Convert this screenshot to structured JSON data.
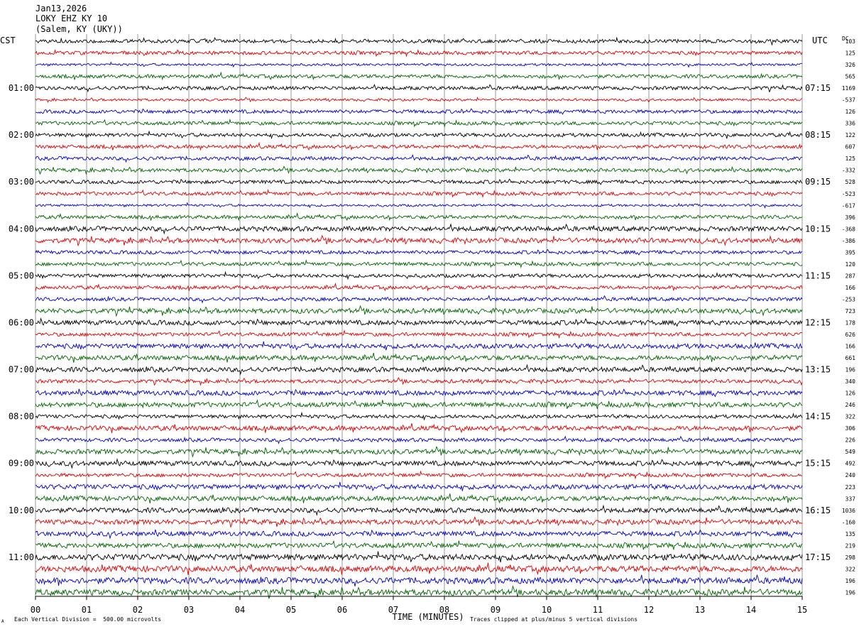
{
  "header": {
    "date": "Jan13,2026",
    "station": "LOKY EHZ KY 10",
    "location": "(Salem, KY (UKY))"
  },
  "left_axis_title": "CST",
  "right_axis_title": "UTC",
  "dc_title": "DC",
  "footer": {
    "scale_note": "Each Vertical Division =  500.00 microvolts",
    "clip_note": "Traces clipped at plus/minus 5 vertical divisions",
    "corner_mark": "A"
  },
  "chart_data": {
    "type": "line",
    "xlabel": "TIME (MINUTES)",
    "xlim": [
      0,
      15
    ],
    "x_ticks": [
      "00",
      "01",
      "02",
      "03",
      "04",
      "05",
      "06",
      "07",
      "08",
      "09",
      "10",
      "11",
      "12",
      "13",
      "14",
      "15"
    ],
    "trace_count": 48,
    "trace_colors": [
      "#000000",
      "#e00000",
      "#0000cc",
      "#006600"
    ],
    "left_time_labels": [
      "01:00",
      "02:00",
      "03:00",
      "04:00",
      "05:00",
      "06:00",
      "07:00",
      "08:00",
      "09:00",
      "10:00",
      "11:00"
    ],
    "right_time_labels": [
      "07:15",
      "08:15",
      "09:15",
      "10:15",
      "11:15",
      "12:15",
      "13:15",
      "14:15",
      "15:15",
      "16:15",
      "17:15"
    ],
    "dc_offsets": [
      "103",
      "125",
      "326",
      "565",
      "1169",
      "-537",
      "126",
      "336",
      "122",
      "607",
      "125",
      "-332",
      "528",
      "-523",
      "-617",
      "396",
      "-368",
      "-386",
      "395",
      "120",
      "287",
      "166",
      "-253",
      "723",
      "178",
      "626",
      "166",
      "661",
      "196",
      "340",
      "126",
      "246",
      "322",
      "306",
      "226",
      "549",
      "492",
      "240",
      "223",
      "337",
      "1036",
      "-160",
      "135",
      "219",
      "298",
      "322",
      "196",
      "196"
    ],
    "amplitude_levels": [
      3,
      3,
      2,
      3,
      3,
      2,
      3,
      3,
      3,
      3,
      3,
      3,
      3,
      3,
      2,
      3,
      4,
      4,
      3,
      3,
      3,
      3,
      3,
      4,
      4,
      3,
      4,
      4,
      4,
      3,
      4,
      4,
      3,
      4,
      3,
      4,
      4,
      3,
      4,
      4,
      4,
      4,
      4,
      4,
      5,
      5,
      5,
      5
    ]
  }
}
